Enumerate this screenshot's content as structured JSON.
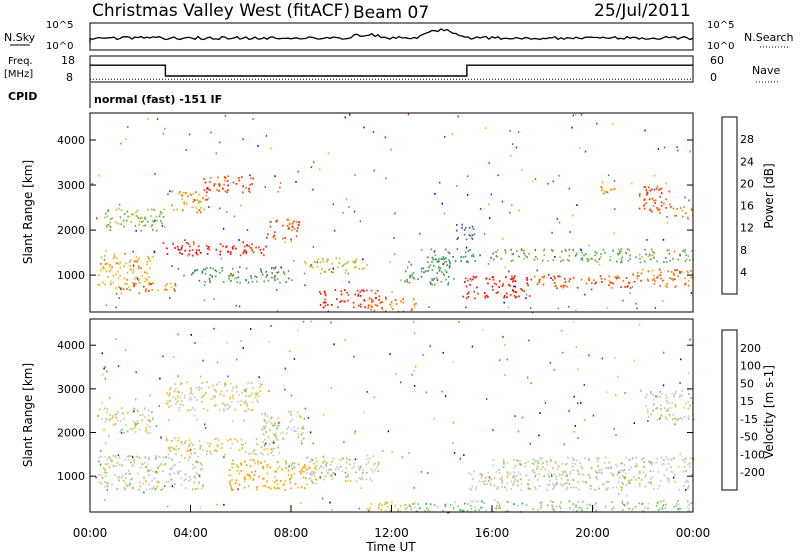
{
  "header": {
    "station": "Christmas Valley West (fitACF)",
    "beam": "Beam 07",
    "date": "25/Jul/2011"
  },
  "params": {
    "nsky_label": "N.Sky",
    "nsky_ticks": [
      "10^5",
      "10^0"
    ],
    "nsearch_label": "N.Search",
    "nsearch_ticks": [
      "10^5",
      "10^0"
    ],
    "freq_label_1": "Freq.",
    "freq_label_2": "[MHz]",
    "freq_ticks": [
      "18",
      "8"
    ],
    "freq_values_mhz": [
      {
        "t": 0,
        "f": 15
      },
      {
        "t": 3,
        "f": 10.5
      },
      {
        "t": 15,
        "f": 15
      }
    ],
    "nave_label": "Nave",
    "nave_ticks": [
      "60",
      "0"
    ],
    "nave_value": 7,
    "cpid_label": "CPID",
    "cpid_text": "normal (fast) -151 IF"
  },
  "colors": {
    "power_scale": [
      "#0000ff",
      "#2f4fb8",
      "#3a8a6a",
      "#55b04a",
      "#b8c030",
      "#ffb000",
      "#ff7000",
      "#ff3000",
      "#ff0000"
    ],
    "velocity_scale": [
      "#ff0000",
      "#ff6000",
      "#ff9a00",
      "#f0c020",
      "#c8c8c8",
      "#7fd060",
      "#2faa60",
      "#1060a0",
      "#0000c0"
    ]
  },
  "chart_data": [
    {
      "type": "heatmap",
      "name": "power",
      "xlabel": "",
      "ylabel": "Slant Range [km]",
      "xlim": [
        0,
        24
      ],
      "ylim": [
        180,
        4600
      ],
      "yticks": [
        "1000",
        "2000",
        "3000",
        "4000"
      ],
      "colorbar_label": "Power [dB]",
      "colorbar_ticks": [
        "4",
        "8",
        "12",
        "16",
        "20",
        "24",
        "28"
      ],
      "colorbar_range": [
        0,
        30
      ],
      "regions": [
        {
          "t": [
            2.5,
            7.0
          ],
          "r": [
            1450,
            1750
          ],
          "v": 27
        },
        {
          "t": [
            7.0,
            8.3
          ],
          "r": [
            1800,
            2300
          ],
          "v": 24
        },
        {
          "t": [
            4.5,
            6.5
          ],
          "r": [
            2850,
            3250
          ],
          "v": 25
        },
        {
          "t": [
            3.2,
            4.6
          ],
          "r": [
            2400,
            2900
          ],
          "v": 20
        },
        {
          "t": [
            0.3,
            2.5
          ],
          "r": [
            800,
            1500
          ],
          "v": 18
        },
        {
          "t": [
            0.5,
            3.0
          ],
          "r": [
            2000,
            2500
          ],
          "v": 13
        },
        {
          "t": [
            1.0,
            3.5
          ],
          "r": [
            600,
            850
          ],
          "v": 22
        },
        {
          "t": [
            4.0,
            8.0
          ],
          "r": [
            850,
            1200
          ],
          "v": 10
        },
        {
          "t": [
            8.5,
            11.0
          ],
          "r": [
            1050,
            1400
          ],
          "v": 15
        },
        {
          "t": [
            9.0,
            11.5
          ],
          "r": [
            300,
            700
          ],
          "v": 26
        },
        {
          "t": [
            11.0,
            13.0
          ],
          "r": [
            200,
            500
          ],
          "v": 22
        },
        {
          "t": [
            12.5,
            14.5
          ],
          "r": [
            800,
            1400
          ],
          "v": 10
        },
        {
          "t": [
            13.5,
            15.5
          ],
          "r": [
            1300,
            1600
          ],
          "v": 9
        },
        {
          "t": [
            14.8,
            17.5
          ],
          "r": [
            500,
            1000
          ],
          "v": 27
        },
        {
          "t": [
            17.5,
            21.5
          ],
          "r": [
            700,
            1000
          ],
          "v": 24
        },
        {
          "t": [
            21.5,
            24.0
          ],
          "r": [
            750,
            1150
          ],
          "v": 22
        },
        {
          "t": [
            16.0,
            24.0
          ],
          "r": [
            1300,
            1600
          ],
          "v": 12
        },
        {
          "t": [
            21.8,
            23.2
          ],
          "r": [
            2400,
            3000
          ],
          "v": 24
        },
        {
          "t": [
            23.2,
            24.0
          ],
          "r": [
            2250,
            2500
          ],
          "v": 21
        },
        {
          "t": [
            20.3,
            20.9
          ],
          "r": [
            2750,
            3100
          ],
          "v": 19
        },
        {
          "t": [
            14.5,
            15.3
          ],
          "r": [
            1800,
            2200
          ],
          "v": 6
        }
      ]
    },
    {
      "type": "heatmap",
      "name": "velocity",
      "xlabel": "Time UT",
      "ylabel": "Slant Range [km]",
      "xlim": [
        0,
        24
      ],
      "ylim": [
        180,
        4600
      ],
      "xticks": [
        "00:00",
        "04:00",
        "08:00",
        "12:00",
        "16:00",
        "20:00",
        "00:00"
      ],
      "yticks": [
        "1000",
        "2000",
        "3000",
        "4000"
      ],
      "colorbar_label": "Velocity [m s-1]",
      "colorbar_ticks": [
        "200",
        "100",
        "50",
        "15",
        "-15",
        "-50",
        "-100",
        "-200"
      ],
      "colorbar_range": [
        -250,
        250
      ],
      "regions": [
        {
          "t": [
            5.5,
            9.0
          ],
          "r": [
            700,
            1400
          ],
          "v": -90
        },
        {
          "t": [
            3.0,
            7.5
          ],
          "r": [
            1500,
            1900
          ],
          "v": -40
        },
        {
          "t": [
            3.0,
            6.8
          ],
          "r": [
            2500,
            3200
          ],
          "v": -30
        },
        {
          "t": [
            6.8,
            8.5
          ],
          "r": [
            1800,
            2500
          ],
          "v": 0
        },
        {
          "t": [
            0.3,
            4.5
          ],
          "r": [
            700,
            1500
          ],
          "v": 0
        },
        {
          "t": [
            0.3,
            2.5
          ],
          "r": [
            2000,
            2600
          ],
          "v": 0
        },
        {
          "t": [
            8.5,
            11.5
          ],
          "r": [
            900,
            1500
          ],
          "v": 0
        },
        {
          "t": [
            11.0,
            13.0
          ],
          "r": [
            200,
            450
          ],
          "v": -45
        },
        {
          "t": [
            12.5,
            15.0
          ],
          "r": [
            200,
            400
          ],
          "v": 60
        },
        {
          "t": [
            15.0,
            24.0
          ],
          "r": [
            700,
            1150
          ],
          "v": 0
        },
        {
          "t": [
            16.0,
            24.0
          ],
          "r": [
            1150,
            1450
          ],
          "v": 0
        },
        {
          "t": [
            22.0,
            24.0
          ],
          "r": [
            2300,
            3000
          ],
          "v": 0
        },
        {
          "t": [
            15.0,
            24.0
          ],
          "r": [
            200,
            450
          ],
          "v": 40
        }
      ]
    }
  ]
}
